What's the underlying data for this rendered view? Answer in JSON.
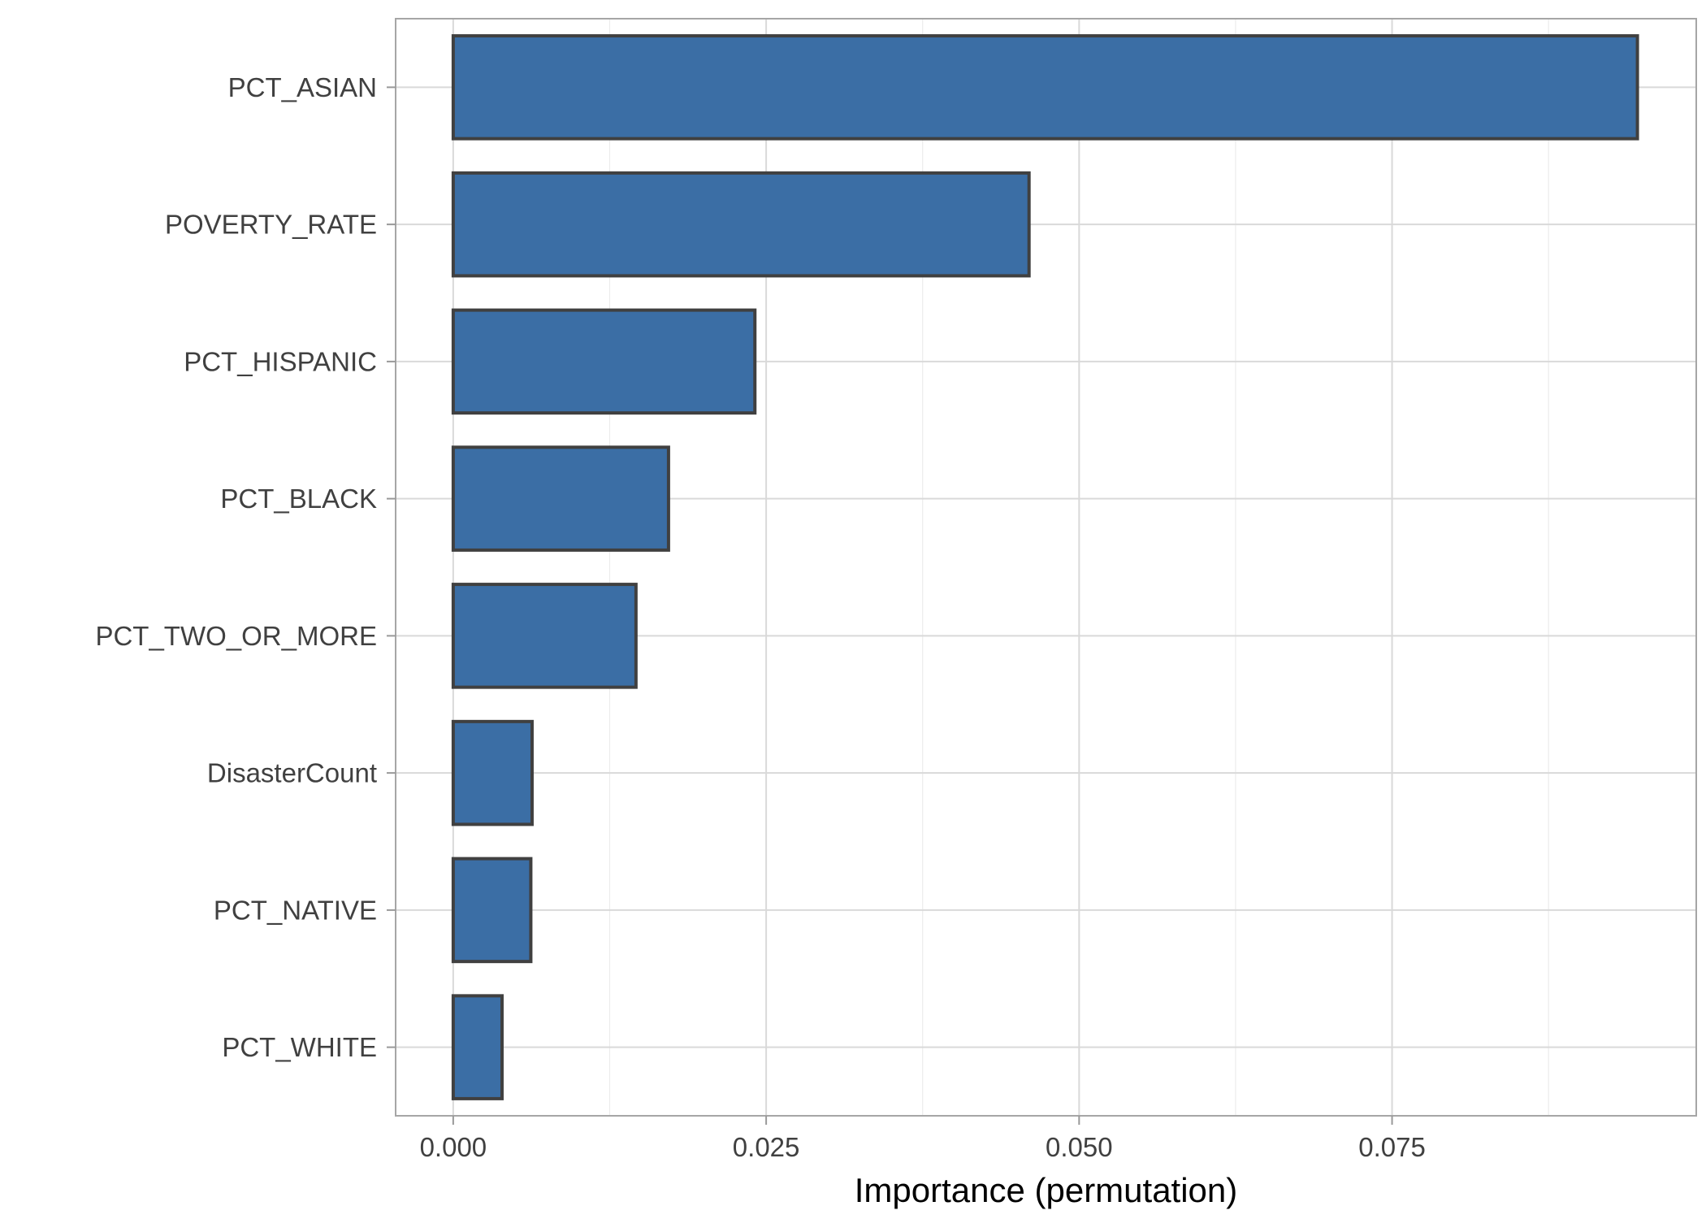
{
  "chart_data": {
    "type": "bar",
    "orientation": "horizontal",
    "title": "",
    "xlabel": "Importance (permutation)",
    "ylabel": "",
    "categories": [
      "PCT_ASIAN",
      "POVERTY_RATE",
      "PCT_HISPANIC",
      "PCT_BLACK",
      "PCT_TWO_OR_MORE",
      "DisasterCount",
      "PCT_NATIVE",
      "PCT_WHITE"
    ],
    "values": [
      0.0946,
      0.046,
      0.0241,
      0.0172,
      0.0146,
      0.0063,
      0.0062,
      0.0039
    ],
    "xlim": [
      -0.0046,
      0.0993
    ],
    "xticks": [
      0.0,
      0.025,
      0.05,
      0.075
    ],
    "xtick_labels": [
      "0.000",
      "0.025",
      "0.050",
      "0.075"
    ],
    "grid": true,
    "legend": "none",
    "colors": {
      "bar_fill": "#3b6ea5",
      "bar_outline": "#404040"
    }
  }
}
